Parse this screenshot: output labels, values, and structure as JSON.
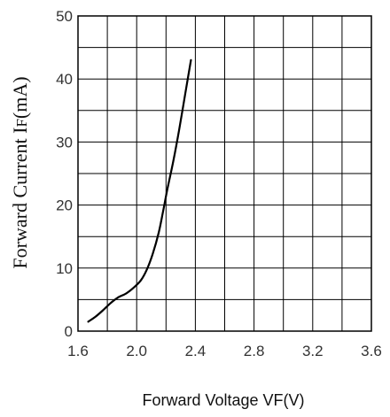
{
  "chart_data": {
    "type": "line",
    "title": "",
    "xlabel": "Forward Voltage VF(V)",
    "ylabel": {
      "main": "Forward Current I",
      "sub": "F",
      "unit": "(mA)"
    },
    "xlim": [
      1.6,
      3.6
    ],
    "ylim": [
      0,
      50
    ],
    "x_ticks": [
      "1.6",
      "2.0",
      "2.4",
      "2.8",
      "3.2",
      "3.6"
    ],
    "y_ticks": [
      "0",
      "10",
      "20",
      "30",
      "40",
      "50"
    ],
    "grid": true,
    "series": [
      {
        "x": [
          1.67,
          1.72,
          1.77,
          1.82,
          1.87,
          1.93,
          1.98,
          2.03,
          2.07,
          2.11,
          2.15,
          2.18,
          2.21,
          2.25,
          2.29,
          2.33,
          2.37
        ],
        "y": [
          1.5,
          2.3,
          3.3,
          4.4,
          5.3,
          6.0,
          6.9,
          8.1,
          9.8,
          12.3,
          15.6,
          19.0,
          22.6,
          27.0,
          32.0,
          37.5,
          43.0
        ]
      }
    ]
  }
}
